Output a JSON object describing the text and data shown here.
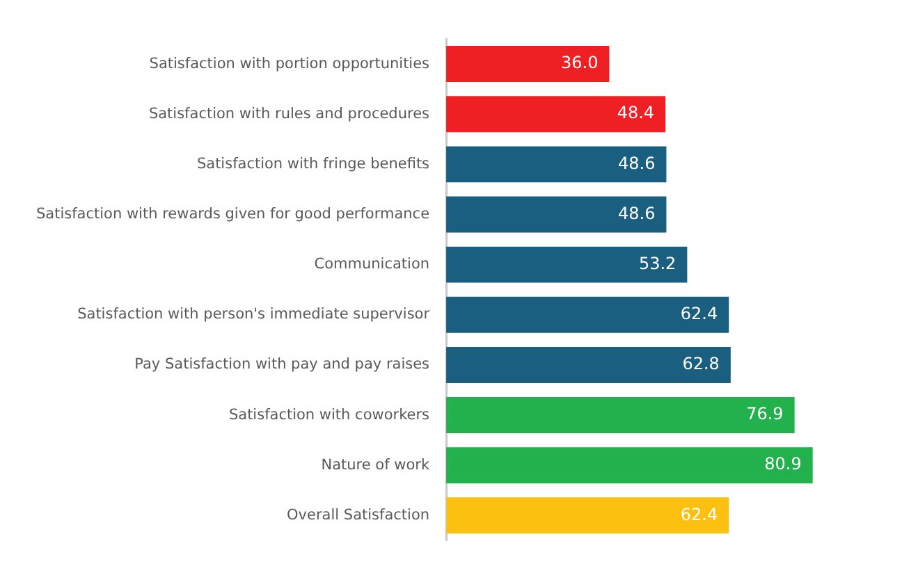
{
  "chart_data": {
    "type": "bar",
    "orientation": "horizontal",
    "categories": [
      "Satisfaction with portion opportunities",
      "Satisfaction with rules and procedures",
      "Satisfaction with fringe benefits",
      "Satisfaction with rewards given for good performance",
      "Communication",
      "Satisfaction with person's immediate supervisor",
      "Pay Satisfaction with pay and pay raises",
      "Satisfaction with coworkers",
      "Nature of work",
      "Overall Satisfaction"
    ],
    "values": [
      36.0,
      48.4,
      48.6,
      48.6,
      53.2,
      62.4,
      62.8,
      76.9,
      80.9,
      62.4
    ],
    "value_labels": [
      "36.0",
      "48.4",
      "48.6",
      "48.6",
      "53.2",
      "62.4",
      "62.8",
      "76.9",
      "80.9",
      "62.4"
    ],
    "colors": [
      "#ee2024",
      "#ee2024",
      "#1b5f80",
      "#1b5f80",
      "#1b5f80",
      "#1b5f80",
      "#1b5f80",
      "#22b14c",
      "#22b14c",
      "#fbc010"
    ],
    "tick_labels": "y",
    "grid": false,
    "legend": false
  }
}
